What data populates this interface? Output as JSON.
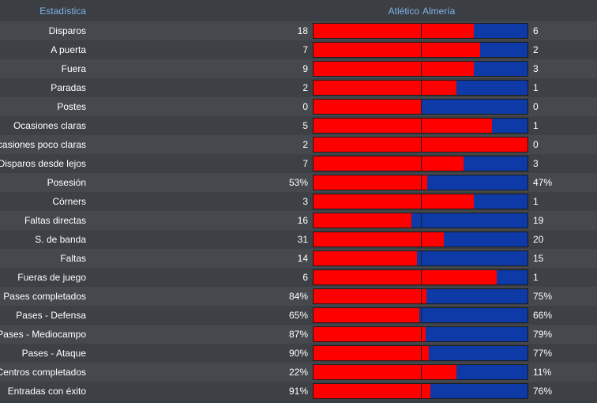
{
  "header": {
    "stat_label": "Estadística",
    "home_team": "Atlético",
    "away_team": "Almería"
  },
  "colors": {
    "home": "#ff0000",
    "away": "#0d3aa6",
    "header_text": "#7fb2ea"
  },
  "stats": [
    {
      "label": "Disparos",
      "home": "18",
      "away": "6",
      "home_share": 0.75
    },
    {
      "label": "A puerta",
      "home": "7",
      "away": "2",
      "home_share": 0.778
    },
    {
      "label": "Fuera",
      "home": "9",
      "away": "3",
      "home_share": 0.75
    },
    {
      "label": "Paradas",
      "home": "2",
      "away": "1",
      "home_share": 0.667
    },
    {
      "label": "Postes",
      "home": "0",
      "away": "0",
      "home_share": 0.5
    },
    {
      "label": "Ocasiones claras",
      "home": "5",
      "away": "1",
      "home_share": 0.833
    },
    {
      "label": "Ocasiones poco claras",
      "home": "2",
      "away": "0",
      "home_share": 1.0
    },
    {
      "label": "Disparos desde lejos",
      "home": "7",
      "away": "3",
      "home_share": 0.7
    },
    {
      "label": "Posesión",
      "home": "53%",
      "away": "47%",
      "home_share": 0.53
    },
    {
      "label": "Córners",
      "home": "3",
      "away": "1",
      "home_share": 0.75
    },
    {
      "label": "Faltas directas",
      "home": "16",
      "away": "19",
      "home_share": 0.457
    },
    {
      "label": "S. de banda",
      "home": "31",
      "away": "20",
      "home_share": 0.608
    },
    {
      "label": "Faltas",
      "home": "14",
      "away": "15",
      "home_share": 0.483
    },
    {
      "label": "Fueras de juego",
      "home": "6",
      "away": "1",
      "home_share": 0.857
    },
    {
      "label": "Pases completados",
      "home": "84%",
      "away": "75%",
      "home_share": 0.528
    },
    {
      "label": "Pases - Defensa",
      "home": "65%",
      "away": "66%",
      "home_share": 0.496
    },
    {
      "label": "Pases - Mediocampo",
      "home": "87%",
      "away": "79%",
      "home_share": 0.524
    },
    {
      "label": "Pases - Ataque",
      "home": "90%",
      "away": "77%",
      "home_share": 0.539
    },
    {
      "label": "Centros completados",
      "home": "22%",
      "away": "11%",
      "home_share": 0.667
    },
    {
      "label": "Entradas con éxito",
      "home": "91%",
      "away": "76%",
      "home_share": 0.545
    }
  ]
}
